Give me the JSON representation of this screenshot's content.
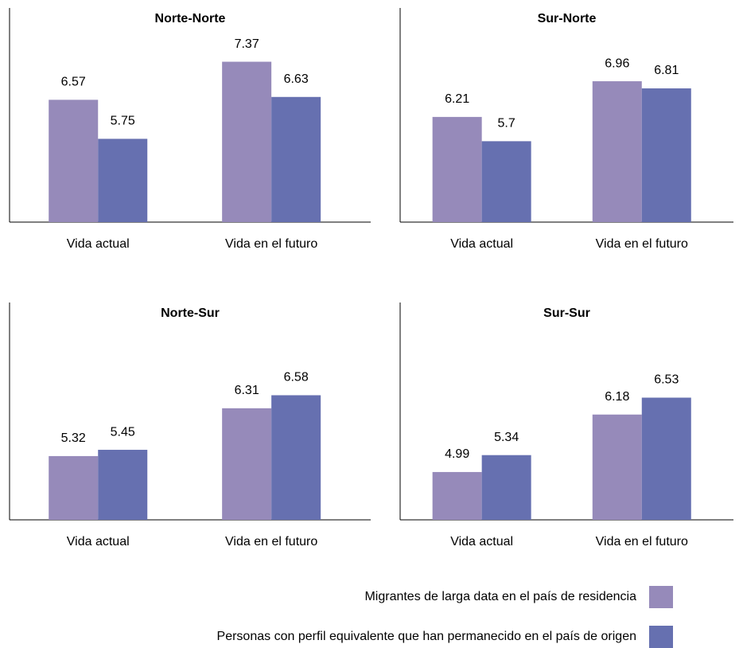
{
  "chart_data": [
    {
      "type": "bar",
      "title": "Norte-Norte",
      "categories": [
        "Vida actual",
        "Vida en el futuro"
      ],
      "series": [
        {
          "values": [
            6.57,
            7.37
          ]
        },
        {
          "values": [
            5.75,
            6.63
          ]
        }
      ],
      "ylim": [
        4,
        8.5
      ]
    },
    {
      "type": "bar",
      "title": "Sur-Norte",
      "categories": [
        "Vida actual",
        "Vida en el futuro"
      ],
      "series": [
        {
          "values": [
            6.21,
            6.96
          ]
        },
        {
          "values": [
            5.7,
            6.81
          ]
        }
      ],
      "ylim": [
        4,
        8.5
      ]
    },
    {
      "type": "bar",
      "title": "Norte-Sur",
      "categories": [
        "Vida actual",
        "Vida en el futuro"
      ],
      "series": [
        {
          "values": [
            5.32,
            6.31
          ]
        },
        {
          "values": [
            5.45,
            6.58
          ]
        }
      ],
      "ylim": [
        4,
        8.5
      ]
    },
    {
      "type": "bar",
      "title": "Sur-Sur",
      "categories": [
        "Vida actual",
        "Vida en el futuro"
      ],
      "series": [
        {
          "values": [
            4.99,
            6.18
          ]
        },
        {
          "values": [
            5.34,
            6.53
          ]
        }
      ],
      "ylim": [
        4,
        8.5
      ]
    }
  ],
  "legend": {
    "series": [
      {
        "name": "Migrantes de larga data en el país de residencia",
        "color": "#968aba"
      },
      {
        "name": "Personas con perfil equivalente que han permanecido en el país de origen",
        "color": "#6670b0"
      }
    ]
  }
}
